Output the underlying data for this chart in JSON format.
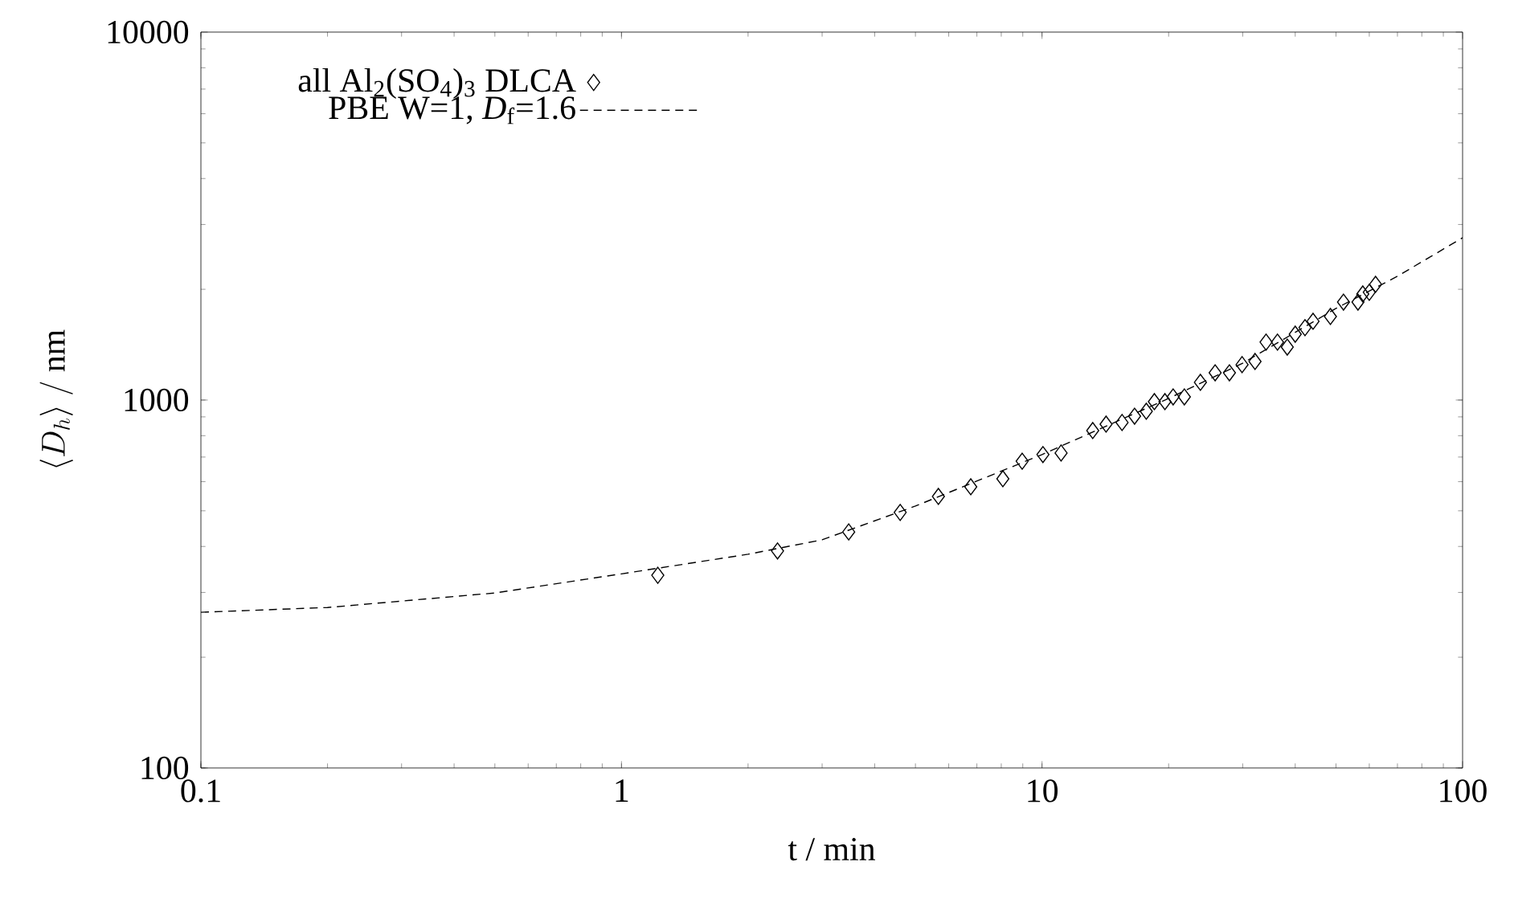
{
  "chart_data": {
    "type": "scatter",
    "xlabel": "t / min",
    "ylabel": "\\langle D_h\\rangle\\ /\\ \\mathrm{nm}",
    "log": "xy",
    "xlim": [
      0.1,
      100
    ],
    "ylim": [
      100,
      10000
    ],
    "xticks": [
      0.1,
      1,
      10,
      100
    ],
    "yticks": [
      100,
      1000,
      10000
    ],
    "legend": "top left",
    "grid": false,
    "series": [
      {
        "name": "all Al$_{2}$(SO$_{4}$)$_{3}$ DLCA",
        "marker": "diamond",
        "color": "#000000",
        "x": [
          1.22,
          2.35,
          3.47,
          4.6,
          5.67,
          6.77,
          8.07,
          8.97,
          10.05,
          11.1,
          13.2,
          14.2,
          15.5,
          16.6,
          17.7,
          18.5,
          19.6,
          20.5,
          21.8,
          23.8,
          25.8,
          27.9,
          29.9,
          32.1,
          34.1,
          36.3,
          38.3,
          40.0,
          42.2,
          44.1,
          48.5,
          52.1,
          56.4,
          57.9,
          60.0,
          62.1
        ],
        "values": [
          334,
          389,
          438,
          495,
          547,
          581,
          611,
          682,
          711,
          718,
          826,
          860,
          869,
          904,
          932,
          990,
          990,
          1020,
          1020,
          1117,
          1186,
          1186,
          1248,
          1273,
          1437,
          1437,
          1393,
          1510,
          1573,
          1637,
          1687,
          1846,
          1846,
          1942,
          1963,
          2063
        ]
      },
      {
        "name": "PBE W=1, *D*$_{f}$=1.6",
        "type": "line",
        "line_style": "dashed",
        "marker": "none",
        "color": "#000000",
        "x": [
          0.1,
          0.2,
          0.5,
          1,
          2,
          3,
          5,
          10,
          20,
          30,
          50,
          70,
          100
        ],
        "values": [
          265,
          273,
          299,
          337,
          381,
          417,
          515,
          711,
          1010,
          1259,
          1774,
          2170,
          2761
        ]
      }
    ]
  }
}
